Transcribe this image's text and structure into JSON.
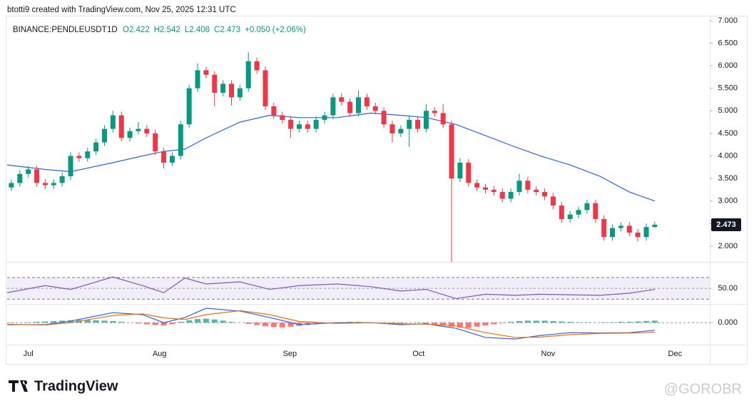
{
  "header": {
    "credit": "btotti9 created with TradingView.com, Nov 25, 2025 12:31 UTC",
    "logo": "TradingView",
    "watermark": "@GOROBR"
  },
  "chart_data": [
    {
      "type": "candlestick",
      "title": "BINANCE:PENDLEUSDT",
      "interval": "1D",
      "legend": [
        "O2.422",
        "H2.542",
        "L2.408",
        "C2.473",
        "+0.050 (+2.06%)"
      ],
      "up_color": "#089981",
      "down_color": "#f23645",
      "xlim": [
        -0.5,
        82.5
      ],
      "xticks": [
        {
          "value": 2.0,
          "label": "Jul"
        },
        {
          "value": 17.5,
          "label": "Aug"
        },
        {
          "value": 32.9,
          "label": "Sep"
        },
        {
          "value": 48.1,
          "label": "Oct"
        },
        {
          "value": 63.4,
          "label": "Nov"
        },
        {
          "value": 78.4,
          "label": "Dec"
        }
      ],
      "ylim": [
        1.65,
        7.11
      ],
      "yticks": [
        {
          "value": 2,
          "label": "2.000"
        },
        {
          "value": 2.5,
          "label": "2.500"
        },
        {
          "value": 3,
          "label": "3.000"
        },
        {
          "value": 3.5,
          "label": "3.500"
        },
        {
          "value": 4,
          "label": "4.000"
        },
        {
          "value": 4.5,
          "label": "4.500"
        },
        {
          "value": 5,
          "label": "5.000"
        },
        {
          "value": 5.5,
          "label": "5.500"
        },
        {
          "value": 6,
          "label": "6.000"
        },
        {
          "value": 6.5,
          "label": "6.500"
        },
        {
          "value": 7,
          "label": "7.000"
        }
      ],
      "open": [
        3.3,
        3.4,
        3.6,
        3.7,
        3.4,
        3.35,
        3.4,
        3.55,
        4.0,
        3.95,
        4.1,
        4.3,
        4.6,
        4.9,
        4.4,
        4.55,
        4.6,
        4.5,
        4.1,
        3.85,
        4.0,
        4.7,
        5.5,
        5.9,
        5.8,
        5.4,
        5.6,
        5.3,
        5.5,
        6.1,
        5.9,
        5.1,
        4.9,
        4.8,
        4.6,
        4.7,
        4.6,
        4.8,
        4.9,
        5.3,
        5.2,
        4.95,
        5.3,
        5.1,
        5.0,
        4.7,
        4.5,
        4.6,
        4.8,
        4.6,
        5.0,
        4.95,
        4.7,
        3.5,
        3.85,
        3.4,
        3.3,
        3.25,
        3.2,
        3.05,
        3.2,
        3.45,
        3.25,
        3.2,
        3.1,
        2.9,
        2.6,
        2.7,
        2.8,
        2.95,
        2.6,
        2.2,
        2.4,
        2.45,
        2.3,
        2.2,
        2.422
      ],
      "high": [
        3.48,
        3.68,
        3.78,
        3.78,
        3.48,
        3.48,
        3.63,
        4.08,
        4.08,
        4.18,
        4.38,
        4.68,
        5.0,
        4.98,
        4.63,
        4.75,
        4.68,
        4.58,
        4.18,
        4.08,
        4.78,
        5.58,
        6.05,
        5.98,
        5.88,
        5.68,
        5.68,
        5.58,
        6.3,
        6.18,
        5.98,
        5.18,
        4.98,
        4.88,
        4.78,
        4.78,
        4.88,
        4.98,
        5.38,
        5.38,
        5.28,
        5.45,
        5.38,
        5.18,
        5.08,
        4.78,
        4.68,
        4.88,
        4.88,
        5.15,
        5.08,
        5.15,
        4.78,
        3.95,
        3.93,
        3.48,
        3.38,
        3.33,
        3.28,
        3.28,
        3.6,
        3.53,
        3.33,
        3.28,
        3.18,
        2.98,
        2.78,
        2.88,
        3.03,
        3.03,
        2.68,
        2.48,
        2.53,
        2.53,
        2.38,
        2.5,
        2.542
      ],
      "low": [
        3.22,
        3.32,
        3.52,
        3.32,
        3.27,
        3.27,
        3.32,
        3.47,
        3.87,
        3.87,
        4.02,
        4.22,
        4.52,
        4.32,
        4.32,
        4.47,
        4.42,
        4.02,
        3.72,
        3.77,
        3.92,
        4.62,
        5.42,
        5.72,
        5.1,
        5.32,
        5.12,
        5.22,
        5.42,
        5.82,
        5.02,
        4.82,
        4.72,
        4.4,
        4.52,
        4.52,
        4.52,
        4.72,
        4.82,
        5.12,
        4.87,
        4.87,
        5.02,
        4.92,
        4.62,
        4.3,
        4.42,
        4.2,
        4.52,
        4.52,
        4.87,
        4.62,
        1.65,
        3.42,
        3.32,
        3.22,
        3.17,
        3.12,
        2.97,
        2.97,
        3.12,
        3.17,
        3.12,
        3.02,
        2.82,
        2.52,
        2.52,
        2.62,
        2.72,
        2.52,
        2.12,
        2.12,
        2.32,
        2.22,
        2.1,
        2.12,
        2.408
      ],
      "close": [
        3.4,
        3.6,
        3.7,
        3.4,
        3.35,
        3.4,
        3.55,
        4.0,
        3.95,
        4.1,
        4.3,
        4.6,
        4.9,
        4.4,
        4.55,
        4.6,
        4.5,
        4.1,
        3.85,
        4.0,
        4.7,
        5.5,
        5.9,
        5.8,
        5.4,
        5.6,
        5.3,
        5.5,
        6.1,
        5.9,
        5.1,
        4.9,
        4.8,
        4.6,
        4.7,
        4.6,
        4.8,
        4.9,
        5.3,
        5.2,
        4.95,
        5.3,
        5.1,
        5.0,
        4.7,
        4.5,
        4.6,
        4.8,
        4.6,
        5.0,
        4.95,
        4.7,
        3.5,
        3.85,
        3.4,
        3.3,
        3.25,
        3.2,
        3.05,
        3.2,
        3.45,
        3.25,
        3.2,
        3.1,
        2.9,
        2.6,
        2.7,
        2.8,
        2.95,
        2.6,
        2.2,
        2.4,
        2.45,
        2.3,
        2.2,
        2.422,
        2.473
      ],
      "last_label_color": "#131722",
      "ma": {
        "color": "#2962ff",
        "x": [
          -0.5,
          4,
          7,
          12,
          15.5,
          18,
          20.5,
          23,
          27,
          30.5,
          34,
          38.5,
          42.5,
          46,
          49,
          52.5,
          56,
          59.5,
          62.5,
          66,
          69.5,
          73,
          76
        ],
        "values": [
          3.8,
          3.7,
          3.65,
          3.85,
          4.0,
          4.1,
          4.15,
          4.4,
          4.75,
          4.9,
          4.85,
          4.85,
          4.95,
          4.9,
          4.85,
          4.7,
          4.45,
          4.2,
          4.0,
          3.8,
          3.55,
          3.2,
          3.0
        ]
      }
    },
    {
      "type": "line",
      "color": "#7e57c2",
      "band": [
        30,
        70
      ],
      "band_color": "#7e57c2",
      "ylim": [
        21,
        99
      ],
      "yticks": [
        {
          "value": 50,
          "label": "50.00"
        }
      ],
      "x": [
        -0.5,
        4,
        7,
        12,
        15.5,
        18,
        20.5,
        23,
        27,
        30.5,
        34,
        38.5,
        42.5,
        46,
        49,
        52.5,
        56,
        59.5,
        62.5,
        66,
        69.5,
        73,
        76
      ],
      "values": [
        42,
        55,
        48,
        71,
        55,
        42,
        69,
        58,
        62,
        48,
        55,
        58,
        53,
        45,
        48,
        31,
        39,
        37,
        39,
        38,
        37,
        41,
        48
      ]
    },
    {
      "type": "macd",
      "ylim": [
        -0.55,
        0.45
      ],
      "yticks": [
        {
          "value": 0,
          "label": "0.000"
        }
      ],
      "up_color": "#26a69a",
      "down_color": "#ff5252",
      "histogram": [
        -0.01,
        0,
        0.01,
        0.02,
        0.03,
        0.04,
        0.05,
        0.06,
        0.07,
        0.07,
        0.06,
        0.05,
        0.04,
        0.02,
        0,
        -0.02,
        -0.04,
        -0.06,
        -0.07,
        -0.04,
        0.02,
        0.06,
        0.09,
        0.1,
        0.08,
        0.05,
        0.02,
        0,
        -0.03,
        -0.06,
        -0.09,
        -0.11,
        -0.12,
        -0.1,
        -0.08,
        -0.06,
        -0.04,
        -0.02,
        0,
        0.01,
        0.02,
        0.02,
        0.01,
        0,
        -0.01,
        -0.02,
        -0.02,
        0,
        0.01,
        -0.02,
        -0.04,
        -0.06,
        -0.1,
        -0.12,
        -0.13,
        -0.1,
        -0.07,
        -0.04,
        -0.01,
        0.02,
        0.04,
        0.05,
        0.05,
        0.05,
        0.04,
        0.03,
        0.02,
        0.01,
        0.01,
        0,
        0.01,
        0.01,
        0.02,
        0.02,
        0.03,
        0.04,
        0.05
      ],
      "x": [
        -0.5,
        4,
        7,
        12,
        15.5,
        18,
        20.5,
        23,
        27,
        30.5,
        34,
        38.5,
        42.5,
        46,
        49,
        52.5,
        56,
        59.5,
        62.5,
        66,
        69.5,
        73,
        76
      ],
      "series": [
        {
          "color": "#2962ff",
          "values": [
            -0.05,
            -0.05,
            0.04,
            0.25,
            0.2,
            0,
            0.13,
            0.36,
            0.29,
            0.13,
            -0.05,
            0,
            0,
            -0.05,
            -0.03,
            -0.14,
            -0.37,
            -0.41,
            -0.32,
            -0.25,
            -0.26,
            -0.25,
            -0.19
          ]
        },
        {
          "color": "#ff6d00",
          "values": [
            -0.04,
            -0.06,
            0,
            0.18,
            0.22,
            0.12,
            0.08,
            0.2,
            0.3,
            0.2,
            0.03,
            -0.02,
            0,
            -0.03,
            -0.04,
            -0.08,
            -0.25,
            -0.37,
            -0.36,
            -0.3,
            -0.27,
            -0.26,
            -0.24
          ]
        }
      ]
    }
  ]
}
